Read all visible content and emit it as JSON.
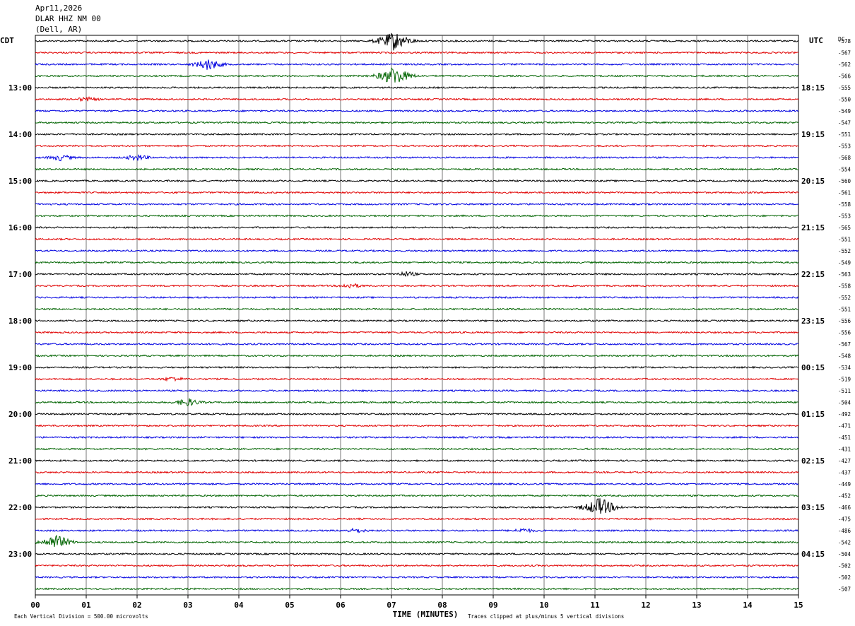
{
  "header": {
    "date": "Apr11,2026",
    "station": "DLAR HHZ NM 00",
    "location": "(Dell, AR)"
  },
  "chart_data": {
    "type": "line",
    "title": "",
    "left_axis_label": "CDT",
    "right_axis_label": "UTC",
    "dc_label": "DC",
    "xlabel": "TIME (MINUTES)",
    "xlim": [
      0,
      15
    ],
    "x_ticks": [
      "00",
      "01",
      "02",
      "03",
      "04",
      "05",
      "06",
      "07",
      "08",
      "09",
      "10",
      "11",
      "12",
      "13",
      "14",
      "15"
    ],
    "grid": true,
    "trace_colors": [
      "#000000",
      "#e00000",
      "#0000e0",
      "#006400"
    ],
    "left_times": [
      "13:00",
      "14:00",
      "15:00",
      "16:00",
      "17:00",
      "18:00",
      "19:00",
      "20:00",
      "21:00",
      "22:00",
      "23:00"
    ],
    "right_times": [
      "18:15",
      "19:15",
      "20:15",
      "21:15",
      "22:15",
      "23:15",
      "00:15",
      "01:15",
      "02:15",
      "03:15",
      "04:15"
    ],
    "dc_offsets": [
      "-578",
      "-567",
      "-562",
      "-566",
      "-555",
      "-550",
      "-549",
      "-547",
      "-551",
      "-553",
      "-568",
      "-554",
      "-560",
      "-561",
      "-558",
      "-553",
      "-565",
      "-551",
      "-552",
      "-549",
      "-563",
      "-558",
      "-552",
      "-551",
      "-556",
      "-556",
      "-567",
      "-548",
      "-534",
      "-519",
      "-511",
      "-504",
      "-492",
      "-471",
      "-451",
      "-431",
      "-427",
      "-437",
      "-449",
      "-452",
      "-466",
      "-475",
      "-486",
      "-542",
      "-504",
      "-502",
      "-502",
      "-507"
    ],
    "events": [
      {
        "trace": 0,
        "minute": 7.05,
        "amplitude": 5
      },
      {
        "trace": 2,
        "minute": 3.4,
        "amplitude": 3
      },
      {
        "trace": 3,
        "minute": 7.05,
        "amplitude": 5
      },
      {
        "trace": 5,
        "minute": 1.0,
        "amplitude": 1
      },
      {
        "trace": 10,
        "minute": 0.5,
        "amplitude": 1.5
      },
      {
        "trace": 10,
        "minute": 2.0,
        "amplitude": 1.5
      },
      {
        "trace": 20,
        "minute": 7.3,
        "amplitude": 1.2
      },
      {
        "trace": 21,
        "minute": 6.2,
        "amplitude": 1.2
      },
      {
        "trace": 29,
        "minute": 2.7,
        "amplitude": 1
      },
      {
        "trace": 31,
        "minute": 3.0,
        "amplitude": 2
      },
      {
        "trace": 40,
        "minute": 11.1,
        "amplitude": 5
      },
      {
        "trace": 42,
        "minute": 6.3,
        "amplitude": 1
      },
      {
        "trace": 42,
        "minute": 9.6,
        "amplitude": 1
      },
      {
        "trace": 43,
        "minute": 0.4,
        "amplitude": 4
      }
    ]
  },
  "footer": {
    "division_note": "Each Vertical Division =  500.00 microvolts",
    "clip_note": "Traces clipped at plus/minus 5 vertical divisions"
  }
}
